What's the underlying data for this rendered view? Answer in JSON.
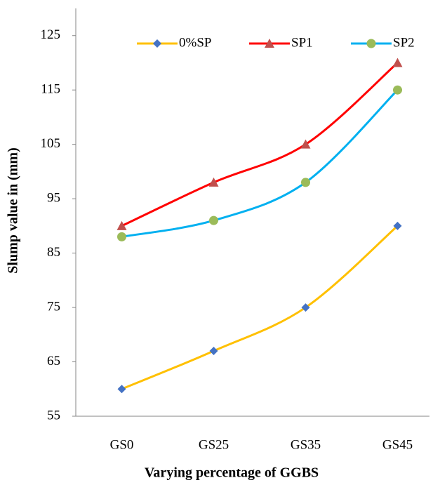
{
  "chart_data": {
    "type": "line",
    "x_label": "Varying percentage of GGBS",
    "y_label": "Slump value in (mm)",
    "categories": [
      "GS0",
      "GS25",
      "GS35",
      "GS45"
    ],
    "series": [
      {
        "name": "0%SP",
        "color": "#FFC000",
        "marker": "diamond",
        "marker_color": "#4472C4",
        "values": [
          60,
          67,
          75,
          90
        ]
      },
      {
        "name": "SP1",
        "color": "#FF0000",
        "marker": "triangle",
        "marker_color": "#C0504D",
        "values": [
          90,
          98,
          105,
          120
        ]
      },
      {
        "name": "SP2",
        "color": "#00B0F0",
        "marker": "circle",
        "marker_color": "#9BBB59",
        "values": [
          88,
          91,
          98,
          115
        ]
      }
    ],
    "ylim": [
      55,
      130
    ],
    "yticks": [
      55,
      65,
      75,
      85,
      95,
      105,
      115,
      125
    ],
    "smooth": true,
    "legend": "top"
  }
}
